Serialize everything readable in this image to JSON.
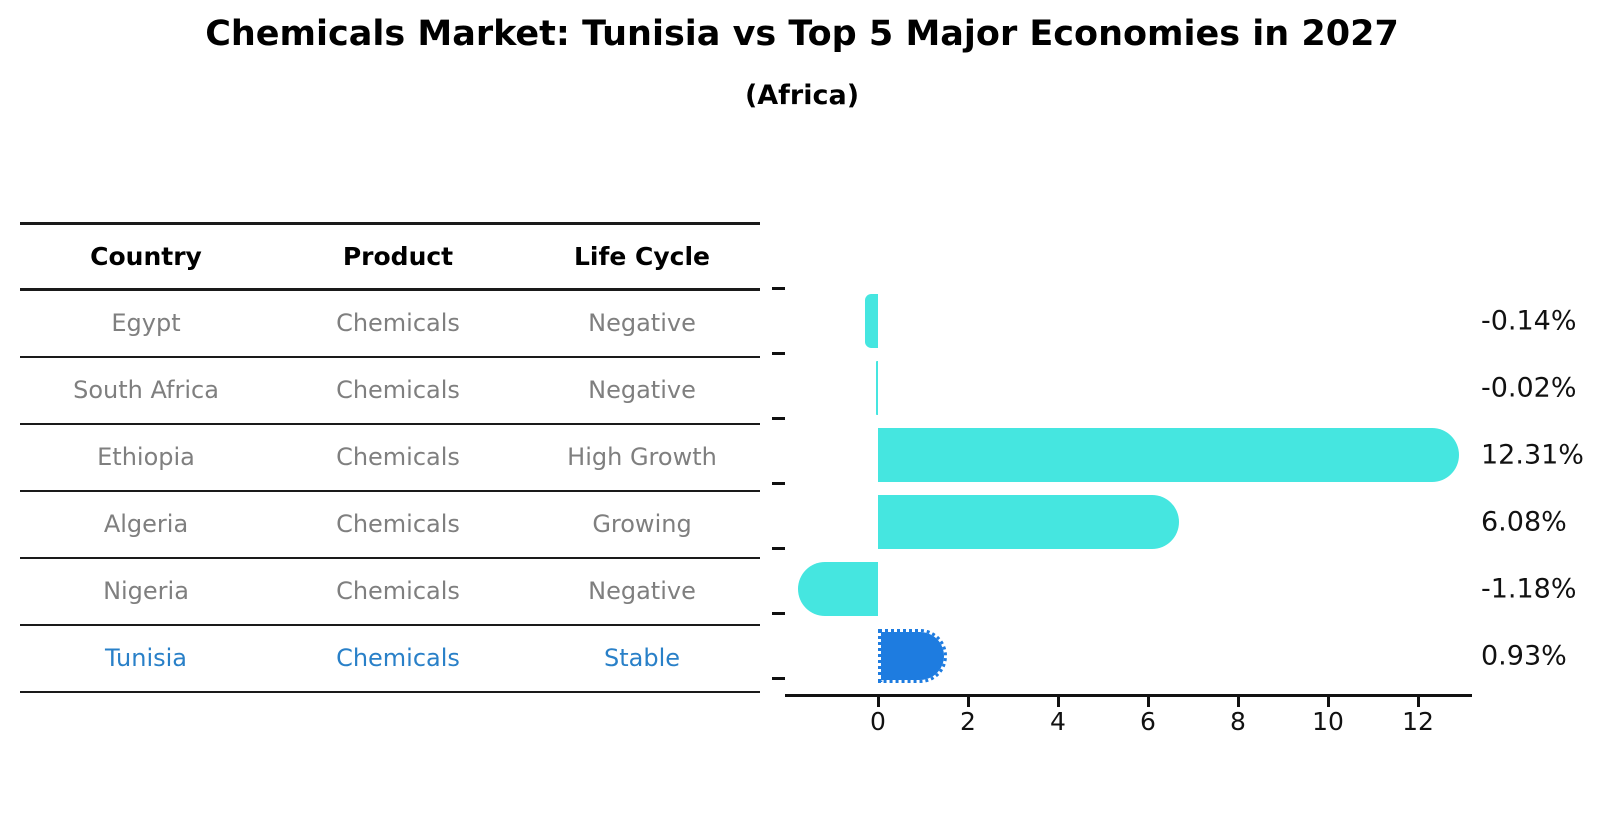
{
  "title": "Chemicals Market: Tunisia vs Top 5 Major Economies in 2027",
  "subtitle": "(Africa)",
  "table": {
    "headers": [
      "Country",
      "Product",
      "Life Cycle"
    ],
    "rows": [
      {
        "country": "Egypt",
        "product": "Chemicals",
        "life_cycle": "Negative",
        "highlight": false
      },
      {
        "country": "South Africa",
        "product": "Chemicals",
        "life_cycle": "Negative",
        "highlight": false
      },
      {
        "country": "Ethiopia",
        "product": "Chemicals",
        "life_cycle": "High Growth",
        "highlight": false
      },
      {
        "country": "Algeria",
        "product": "Chemicals",
        "life_cycle": "Growing",
        "highlight": false
      },
      {
        "country": "Nigeria",
        "product": "Chemicals",
        "life_cycle": "Negative",
        "highlight": false
      },
      {
        "country": "Tunisia",
        "product": "Chemicals",
        "life_cycle": "Stable",
        "highlight": true
      }
    ]
  },
  "chart_data": {
    "type": "bar",
    "orientation": "horizontal",
    "title": "Chemicals Market: Tunisia vs Top 5 Major Economies in 2027",
    "subtitle": "(Africa)",
    "categories": [
      "Egypt",
      "South Africa",
      "Ethiopia",
      "Algeria",
      "Nigeria",
      "Tunisia"
    ],
    "values": [
      -0.14,
      -0.02,
      12.31,
      6.08,
      -1.18,
      0.93
    ],
    "value_labels": [
      "-0.14%",
      "-0.02%",
      "12.31%",
      "6.08%",
      "-1.18%",
      "0.93%"
    ],
    "unit": "percent",
    "x_ticks": [
      0,
      2,
      4,
      6,
      8,
      10,
      12
    ],
    "xlim": [
      -2.1,
      13.2
    ],
    "grid": false,
    "legend": "none",
    "highlight_index": 5,
    "bar_color": "#45e6e0",
    "highlight_bar_color": "#1e7ce0",
    "highlight_text_color": "#2980c8"
  }
}
